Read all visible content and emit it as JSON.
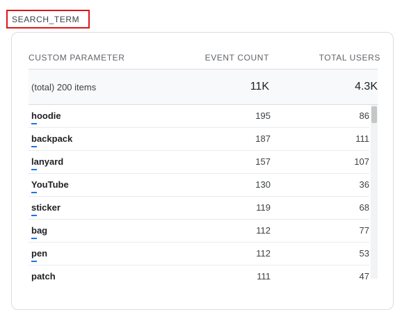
{
  "title": "SEARCH_TERM",
  "columns": {
    "param": "CUSTOM PARAMETER",
    "event_count": "EVENT COUNT",
    "total_users": "TOTAL USERS"
  },
  "totals": {
    "label": "(total) 200 items",
    "event_count": "11K",
    "total_users": "4.3K"
  },
  "rows": [
    {
      "name": "hoodie",
      "event_count": "195",
      "total_users": "86"
    },
    {
      "name": "backpack",
      "event_count": "187",
      "total_users": "111"
    },
    {
      "name": "lanyard",
      "event_count": "157",
      "total_users": "107"
    },
    {
      "name": "YouTube",
      "event_count": "130",
      "total_users": "36"
    },
    {
      "name": "sticker",
      "event_count": "119",
      "total_users": "68"
    },
    {
      "name": "bag",
      "event_count": "112",
      "total_users": "77"
    },
    {
      "name": "pen",
      "event_count": "112",
      "total_users": "53"
    },
    {
      "name": "patch",
      "event_count": "111",
      "total_users": "47"
    }
  ],
  "colors": {
    "highlight_border": "#e0131b",
    "bar": "#1a73e8"
  }
}
